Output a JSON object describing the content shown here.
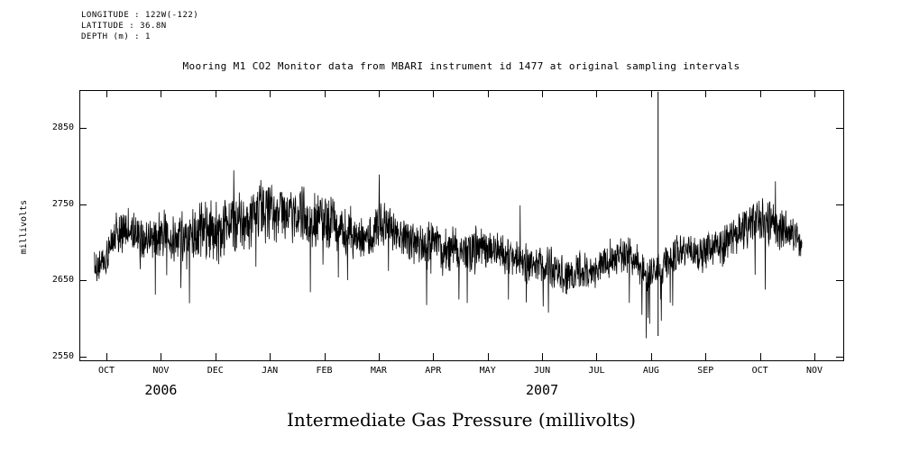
{
  "header": {
    "longitude": "LONGITUDE : 122W(-122)",
    "latitude": "LATITUDE : 36.8N",
    "depth": "DEPTH (m) : 1"
  },
  "title": "Mooring M1 CO2 Monitor data from MBARI instrument id 1477 at original sampling intervals",
  "chart_data": {
    "type": "line",
    "title": "Mooring M1 CO2 Monitor data from MBARI instrument id 1477 at original sampling intervals",
    "ylabel": "millivolts",
    "xlabel": "Intermediate Gas Pressure (millivolts)",
    "series_color": "#000000",
    "background": "#ffffff",
    "ylim": [
      2545,
      2900
    ],
    "yticks": [
      2550,
      2650,
      2750,
      2850
    ],
    "x_months": [
      "OCT",
      "NOV",
      "DEC",
      "JAN",
      "FEB",
      "MAR",
      "APR",
      "MAY",
      "JUN",
      "JUL",
      "AUG",
      "SEP",
      "OCT",
      "NOV"
    ],
    "years": [
      {
        "label": "2006",
        "t": 1.0
      },
      {
        "label": "2007",
        "t": 8.0
      }
    ],
    "data_t_range": [
      -0.22,
      12.77
    ],
    "seed": 1477,
    "points_count": 2300,
    "anchors": [
      [
        -0.22,
        2668,
        22
      ],
      [
        0.0,
        2678,
        28
      ],
      [
        0.25,
        2700,
        36
      ],
      [
        0.5,
        2695,
        32
      ],
      [
        0.75,
        2698,
        30
      ],
      [
        1.0,
        2705,
        36
      ],
      [
        1.25,
        2700,
        38
      ],
      [
        1.5,
        2712,
        40
      ],
      [
        1.75,
        2730,
        42
      ],
      [
        2.0,
        2728,
        46
      ],
      [
        2.25,
        2745,
        46
      ],
      [
        2.5,
        2740,
        42
      ],
      [
        2.75,
        2744,
        50
      ],
      [
        3.0,
        2752,
        46
      ],
      [
        3.25,
        2745,
        40
      ],
      [
        3.5,
        2730,
        40
      ],
      [
        3.75,
        2722,
        40
      ],
      [
        4.0,
        2730,
        44
      ],
      [
        4.25,
        2718,
        38
      ],
      [
        4.5,
        2708,
        36
      ],
      [
        4.75,
        2702,
        35
      ],
      [
        5.0,
        2718,
        35
      ],
      [
        5.25,
        2712,
        33
      ],
      [
        5.5,
        2705,
        32
      ],
      [
        5.75,
        2700,
        33
      ],
      [
        6.0,
        2710,
        33
      ],
      [
        6.25,
        2695,
        36
      ],
      [
        6.5,
        2695,
        32
      ],
      [
        6.75,
        2692,
        32
      ],
      [
        7.0,
        2685,
        31
      ],
      [
        7.25,
        2672,
        33
      ],
      [
        7.5,
        2672,
        30
      ],
      [
        7.75,
        2668,
        30
      ],
      [
        8.0,
        2672,
        29
      ],
      [
        8.25,
        2678,
        29
      ],
      [
        8.5,
        2672,
        28
      ],
      [
        8.75,
        2668,
        28
      ],
      [
        9.0,
        2672,
        28
      ],
      [
        9.25,
        2678,
        28
      ],
      [
        9.5,
        2672,
        28
      ],
      [
        9.75,
        2668,
        27
      ],
      [
        10.0,
        2662,
        26
      ],
      [
        10.25,
        2665,
        26
      ],
      [
        10.5,
        2672,
        26
      ],
      [
        10.75,
        2680,
        26
      ],
      [
        11.0,
        2688,
        27
      ],
      [
        11.25,
        2690,
        28
      ],
      [
        11.5,
        2692,
        31
      ],
      [
        11.75,
        2700,
        29
      ],
      [
        12.0,
        2708,
        31
      ],
      [
        12.25,
        2718,
        33
      ],
      [
        12.5,
        2705,
        30
      ],
      [
        12.77,
        2698,
        26
      ]
    ],
    "spike": {
      "t": 10.13,
      "ymin": 2577,
      "ymax": 2898
    }
  }
}
